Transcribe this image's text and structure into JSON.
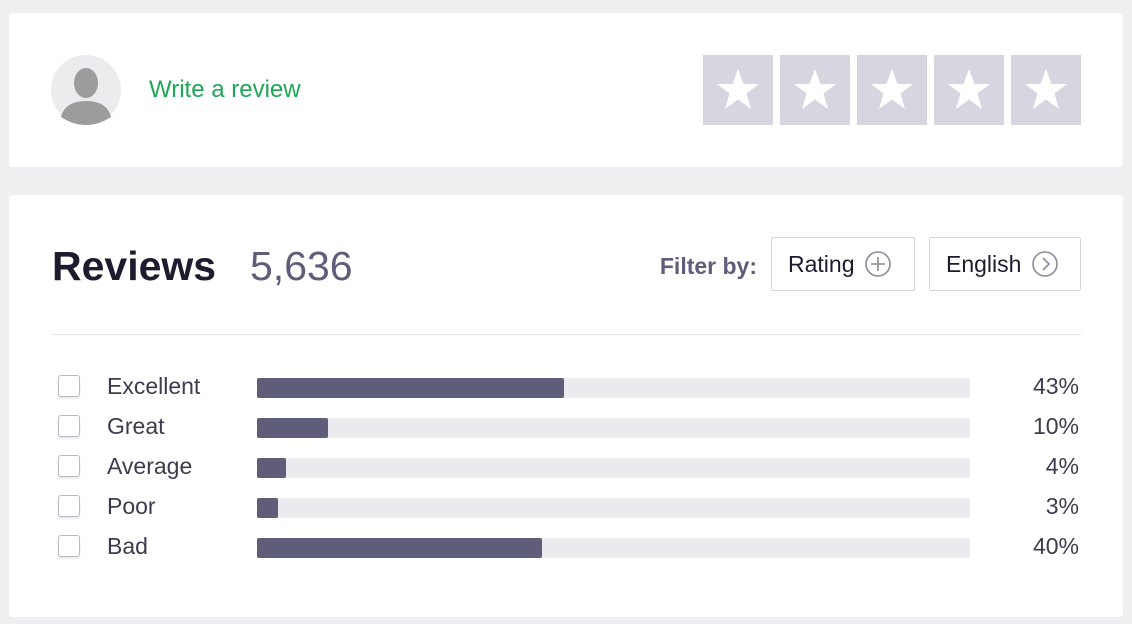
{
  "header": {
    "link": "Write a review"
  },
  "reviews": {
    "title": "Reviews",
    "count": "5,636",
    "filter_label": "Filter by:",
    "filters": [
      "Rating",
      "English"
    ],
    "xlim": [
      0,
      100
    ],
    "rows": [
      {
        "label": "Excellent",
        "value": 43,
        "value_label": "43%"
      },
      {
        "label": "Great",
        "value": 10,
        "value_label": "10%"
      },
      {
        "label": "Average",
        "value": 4,
        "value_label": "4%"
      },
      {
        "label": "Poor",
        "value": 3,
        "value_label": "3%"
      },
      {
        "label": "Bad",
        "value": 40,
        "value_label": "40%"
      }
    ]
  }
}
